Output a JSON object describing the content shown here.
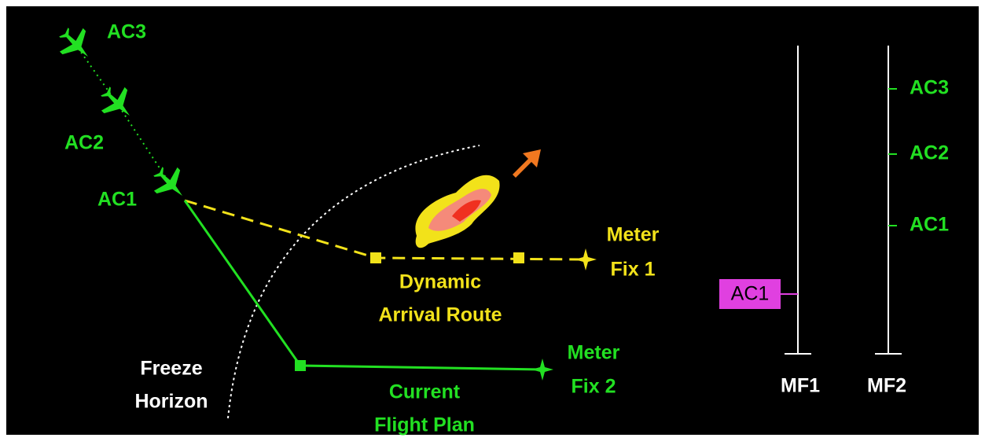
{
  "aircraft": [
    {
      "label": "AC3"
    },
    {
      "label": "AC2"
    },
    {
      "label": "AC1"
    }
  ],
  "labels": {
    "meter_fix_1": [
      "Meter",
      "Fix 1"
    ],
    "dynamic_route": [
      "Dynamic",
      "Arrival Route"
    ],
    "meter_fix_2": [
      "Meter",
      "Fix 2"
    ],
    "freeze_horizon": [
      "Freeze",
      "Horizon"
    ],
    "current_plan": [
      "Current",
      "Flight Plan"
    ]
  },
  "timelines": [
    {
      "label": "MF1",
      "entries": [
        "AC1"
      ]
    },
    {
      "label": "MF2",
      "entries": [
        "AC3",
        "AC2",
        "AC1"
      ]
    }
  ]
}
